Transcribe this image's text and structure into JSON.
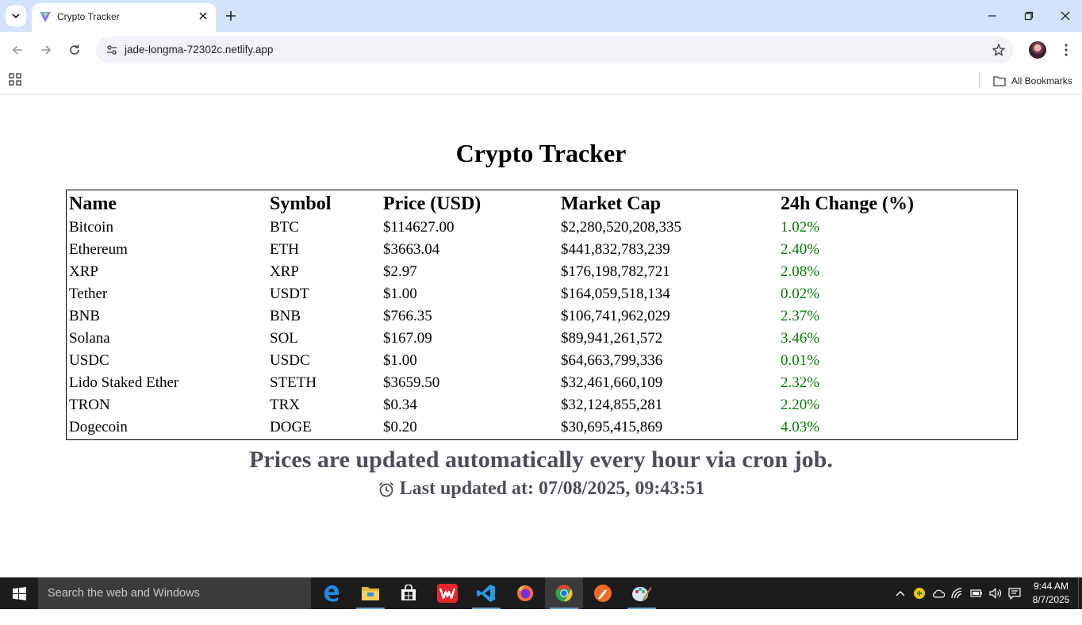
{
  "browser": {
    "tab_title": "Crypto Tracker",
    "url": "jade-longma-72302c.netlify.app",
    "bookmarks_label": "All Bookmarks"
  },
  "page": {
    "title": "Crypto Tracker",
    "columns": [
      "Name",
      "Symbol",
      "Price (USD)",
      "Market Cap",
      "24h Change (%)"
    ],
    "rows": [
      {
        "name": "Bitcoin",
        "symbol": "BTC",
        "price": "$114627.00",
        "market_cap": "$2,280,520,208,335",
        "change": "1.02%"
      },
      {
        "name": "Ethereum",
        "symbol": "ETH",
        "price": "$3663.04",
        "market_cap": "$441,832,783,239",
        "change": "2.40%"
      },
      {
        "name": "XRP",
        "symbol": "XRP",
        "price": "$2.97",
        "market_cap": "$176,198,782,721",
        "change": "2.08%"
      },
      {
        "name": "Tether",
        "symbol": "USDT",
        "price": "$1.00",
        "market_cap": "$164,059,518,134",
        "change": "0.02%"
      },
      {
        "name": "BNB",
        "symbol": "BNB",
        "price": "$766.35",
        "market_cap": "$106,741,962,029",
        "change": "2.37%"
      },
      {
        "name": "Solana",
        "symbol": "SOL",
        "price": "$167.09",
        "market_cap": "$89,941,261,572",
        "change": "3.46%"
      },
      {
        "name": "USDC",
        "symbol": "USDC",
        "price": "$1.00",
        "market_cap": "$64,663,799,336",
        "change": "0.01%"
      },
      {
        "name": "Lido Staked Ether",
        "symbol": "STETH",
        "price": "$3659.50",
        "market_cap": "$32,461,660,109",
        "change": "2.32%"
      },
      {
        "name": "TRON",
        "symbol": "TRX",
        "price": "$0.34",
        "market_cap": "$32,124,855,281",
        "change": "2.20%"
      },
      {
        "name": "Dogecoin",
        "symbol": "DOGE",
        "price": "$0.20",
        "market_cap": "$30,695,415,869",
        "change": "4.03%"
      }
    ],
    "update_note": "Prices are updated automatically every hour via cron job.",
    "last_updated": "Last updated at: 07/08/2025, 09:43:51"
  },
  "taskbar": {
    "search_placeholder": "Search the web and Windows",
    "time": "9:44 AM",
    "date": "8/7/2025",
    "apps": [
      "edge-icon",
      "file-explorer-icon",
      "store-icon",
      "wps-office-icon",
      "vscode-icon",
      "firefox-icon",
      "chrome-icon",
      "pen-app-icon",
      "paint-app-icon"
    ]
  },
  "colors": {
    "tabbar": "#d3e3fd",
    "positive_change": "#0a7a0a",
    "footer_text": "#4a5058",
    "taskbar": "#1c1c1c"
  }
}
